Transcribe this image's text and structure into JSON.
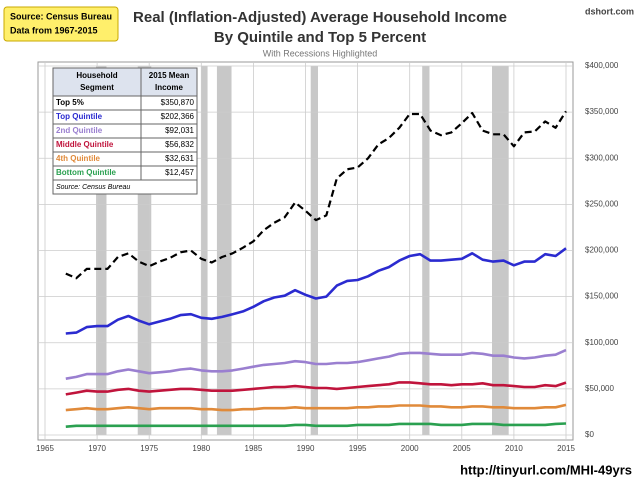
{
  "chart_data": {
    "type": "line",
    "title": [
      "Real (Inflation-Adjusted) Average Household Income",
      "By Quintile and Top 5 Percent"
    ],
    "subtitle": "With Recessions Highlighted",
    "source_box": [
      "Source: Census Bureau",
      "Data from 1967-2015"
    ],
    "brand": "dshort.com",
    "url": "http://tinyurl.com/MHI-49yrs",
    "x": [
      1967,
      1968,
      1969,
      1970,
      1971,
      1972,
      1973,
      1974,
      1975,
      1976,
      1977,
      1978,
      1979,
      1980,
      1981,
      1982,
      1983,
      1984,
      1985,
      1986,
      1987,
      1988,
      1989,
      1990,
      1991,
      1992,
      1993,
      1994,
      1995,
      1996,
      1997,
      1998,
      1999,
      2000,
      2001,
      2002,
      2003,
      2004,
      2005,
      2006,
      2007,
      2008,
      2009,
      2010,
      2011,
      2012,
      2013,
      2014,
      2015
    ],
    "xlim": [
      1965,
      2015
    ],
    "xticks": [
      1965,
      1970,
      1975,
      1980,
      1985,
      1990,
      1995,
      2000,
      2005,
      2010,
      2015
    ],
    "ylim": [
      0,
      400000
    ],
    "yticks": [
      {
        "value": 0,
        "label": "$0"
      },
      {
        "value": 50000,
        "label": "$50,000"
      },
      {
        "value": 100000,
        "label": "$100,000"
      },
      {
        "value": 150000,
        "label": "$150,000"
      },
      {
        "value": 200000,
        "label": "$200,000"
      },
      {
        "value": 250000,
        "label": "$250,000"
      },
      {
        "value": 300000,
        "label": "$300,000"
      },
      {
        "value": 350000,
        "label": "$350,000"
      },
      {
        "value": 400000,
        "label": "$400,000"
      }
    ],
    "grid": true,
    "recessions": [
      [
        1969.9,
        1970.9
      ],
      [
        1973.9,
        1975.2
      ],
      [
        1980.0,
        1980.6
      ],
      [
        1981.5,
        1982.9
      ],
      [
        1990.5,
        1991.2
      ],
      [
        2001.2,
        2001.9
      ],
      [
        2007.9,
        2009.5
      ]
    ],
    "series": [
      {
        "name": "Top 5%",
        "color": "#000000",
        "dash": true,
        "values": [
          175000,
          170000,
          180000,
          180000,
          180000,
          193000,
          197000,
          188000,
          183000,
          188000,
          192000,
          198000,
          200000,
          191000,
          187000,
          193000,
          197000,
          203000,
          210000,
          222000,
          230000,
          236000,
          252000,
          243000,
          233000,
          238000,
          278000,
          288000,
          290000,
          300000,
          315000,
          322000,
          333000,
          348000,
          348000,
          330000,
          325000,
          328000,
          338000,
          349000,
          330000,
          326000,
          326000,
          313000,
          328000,
          329000,
          340000,
          333000,
          350870
        ]
      },
      {
        "name": "Top Quintile",
        "color": "#2b2bd0",
        "dash": false,
        "values": [
          110000,
          111000,
          117000,
          118000,
          118000,
          125000,
          129000,
          124000,
          120000,
          123000,
          126000,
          130000,
          131000,
          127000,
          126000,
          128000,
          131000,
          134000,
          139000,
          145000,
          149000,
          151000,
          157000,
          152000,
          148000,
          150000,
          162000,
          167000,
          168000,
          172000,
          178000,
          182000,
          189000,
          194000,
          196000,
          189000,
          189000,
          190000,
          191000,
          197000,
          190000,
          188000,
          189000,
          184000,
          188000,
          188000,
          196000,
          194000,
          202366
        ]
      },
      {
        "name": "2nd Quintile",
        "color": "#9a7fd0",
        "dash": false,
        "values": [
          61000,
          63000,
          66000,
          66000,
          66000,
          69000,
          71000,
          69000,
          67000,
          68000,
          69000,
          71000,
          72000,
          70000,
          69000,
          69000,
          70000,
          72000,
          74000,
          76000,
          77000,
          78000,
          80000,
          79000,
          77000,
          77000,
          78000,
          78000,
          79000,
          81000,
          83000,
          85000,
          88000,
          89000,
          89000,
          88000,
          87000,
          87000,
          87000,
          89000,
          88000,
          86000,
          86000,
          84000,
          83000,
          84000,
          86000,
          87000,
          92031
        ]
      },
      {
        "name": "Middle Quintile",
        "color": "#c0143c",
        "dash": false,
        "values": [
          44000,
          46000,
          48000,
          47000,
          47000,
          49000,
          50000,
          48000,
          47000,
          48000,
          49000,
          50000,
          50000,
          49000,
          48000,
          48000,
          48000,
          49000,
          50000,
          51000,
          52000,
          52000,
          53000,
          52000,
          51000,
          51000,
          50000,
          51000,
          52000,
          53000,
          54000,
          55000,
          57000,
          57000,
          56000,
          55000,
          55000,
          54000,
          55000,
          55000,
          56000,
          54000,
          54000,
          53000,
          52000,
          52000,
          54000,
          53000,
          56832
        ]
      },
      {
        "name": "4th Quintile",
        "color": "#e08a3a",
        "dash": false,
        "values": [
          27000,
          28000,
          29000,
          28000,
          28000,
          29000,
          30000,
          29000,
          28000,
          29000,
          29000,
          29000,
          29000,
          28000,
          28000,
          27000,
          27000,
          28000,
          28000,
          29000,
          29000,
          29000,
          30000,
          29000,
          29000,
          29000,
          29000,
          29000,
          30000,
          30000,
          31000,
          31000,
          32000,
          32000,
          32000,
          31000,
          31000,
          30000,
          30000,
          31000,
          31000,
          30000,
          30000,
          29000,
          29000,
          29000,
          30000,
          30000,
          32631
        ]
      },
      {
        "name": "Bottom Quintile",
        "color": "#2aa050",
        "dash": false,
        "values": [
          9000,
          10000,
          10000,
          10000,
          10000,
          10000,
          10000,
          10000,
          10000,
          10000,
          10000,
          10000,
          10000,
          10000,
          10000,
          10000,
          10000,
          10000,
          10000,
          10000,
          10000,
          10000,
          11000,
          11000,
          10000,
          10000,
          10000,
          10000,
          11000,
          11000,
          11000,
          11000,
          12000,
          12000,
          12000,
          12000,
          11000,
          11000,
          11000,
          12000,
          12000,
          12000,
          11000,
          11000,
          11000,
          11000,
          11000,
          12000,
          12457
        ]
      }
    ],
    "table": {
      "header": [
        [
          "Household",
          "Segment"
        ],
        [
          "2015 Mean",
          "Income"
        ]
      ],
      "values": [
        "$350,870",
        "$202,366",
        "$92,031",
        "$56,832",
        "$32,631",
        "$12,457"
      ],
      "source": "Source: Census Bureau"
    }
  }
}
